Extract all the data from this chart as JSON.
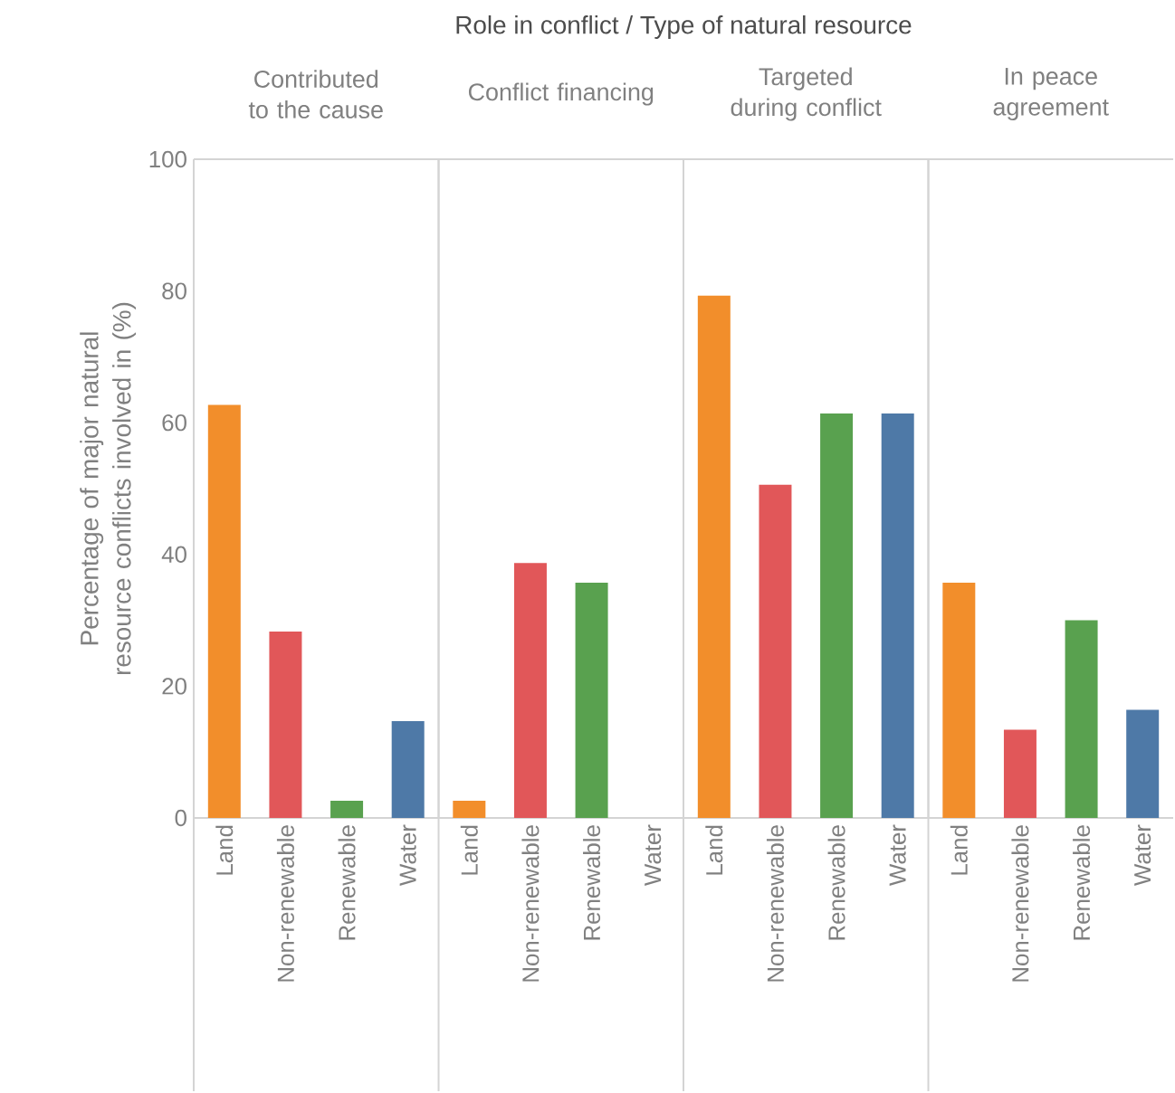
{
  "chart_data": [
    {
      "type": "bar",
      "title": "Contributed to the cause",
      "ylabel": "Percentage of major natural resource conflicts involved in (%)",
      "annotations": [
        "Role in conflict / Type of natural resource"
      ],
      "categories": [
        "Land",
        "Non-renewable",
        "Renewable",
        "Water"
      ],
      "values": [
        62.7,
        28.3,
        2.6,
        14.7
      ],
      "colors": [
        "#f28e2b",
        "#e15759",
        "#59a14f",
        "#4e79a7"
      ],
      "ylim": [
        0,
        100
      ],
      "yticks": [
        0,
        20,
        40,
        60,
        80,
        100
      ]
    },
    {
      "type": "bar",
      "title": "Conflict financing",
      "categories": [
        "Land",
        "Non-renewable",
        "Renewable",
        "Water"
      ],
      "values": [
        2.6,
        38.7,
        35.7,
        0
      ],
      "colors": [
        "#f28e2b",
        "#e15759",
        "#59a14f",
        "#4e79a7"
      ],
      "ylim": [
        0,
        100
      ],
      "tick_labels": "x"
    },
    {
      "type": "bar",
      "title": "Targeted during conflict",
      "categories": [
        "Land",
        "Non-renewable",
        "Renewable",
        "Water"
      ],
      "values": [
        79.3,
        50.6,
        61.4,
        61.4
      ],
      "colors": [
        "#f28e2b",
        "#e15759",
        "#59a14f",
        "#4e79a7"
      ],
      "ylim": [
        0,
        100
      ],
      "tick_labels": "x"
    },
    {
      "type": "bar",
      "title": "In peace agreement",
      "categories": [
        "Land",
        "Non-renewable",
        "Renewable",
        "Water"
      ],
      "values": [
        35.7,
        13.4,
        30,
        16.4
      ],
      "colors": [
        "#f28e2b",
        "#e15759",
        "#59a14f",
        "#4e79a7"
      ],
      "ylim": [
        0,
        100
      ],
      "tick_labels": "x"
    }
  ]
}
